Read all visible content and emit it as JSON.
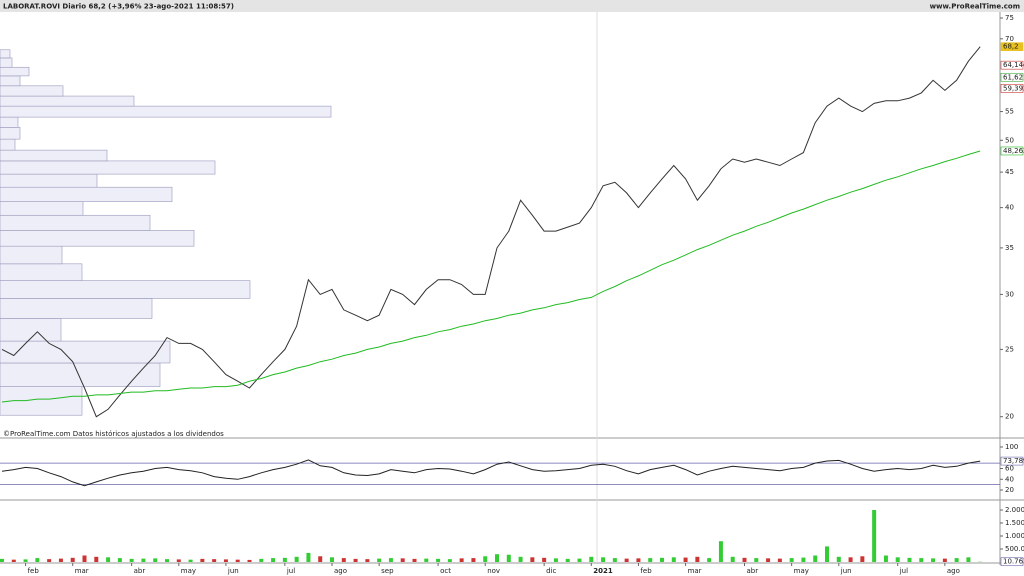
{
  "chart_data": [
    {
      "type": "line",
      "title": "LABORAT.ROVI Diario 68,2 (+3,96% 23-ago-2021 11:08:57)",
      "source": "www.ProRealTime.com",
      "note": "©ProRealTime.com  Datos históricos ajustados a los dividendos",
      "log_scale": true,
      "categories": [
        null,
        null,
        "feb",
        null,
        null,
        null,
        "mar",
        null,
        null,
        null,
        null,
        "abr",
        null,
        null,
        null,
        "may",
        null,
        null,
        null,
        "jun",
        null,
        null,
        null,
        null,
        "jul",
        null,
        null,
        null,
        "ago",
        null,
        null,
        null,
        "sep",
        null,
        null,
        null,
        null,
        "oct",
        null,
        null,
        null,
        "nov",
        null,
        null,
        null,
        null,
        "dic",
        null,
        null,
        null,
        "2021",
        null,
        null,
        null,
        "feb",
        null,
        null,
        null,
        "mar",
        null,
        null,
        null,
        null,
        "abr",
        null,
        null,
        null,
        "may",
        null,
        null,
        null,
        "jun",
        null,
        null,
        null,
        null,
        "jul",
        null,
        null,
        null,
        "ago",
        null,
        null,
        null
      ],
      "series": [
        {
          "name": "LABORAT.ROVI",
          "color": "#333333",
          "values": [
            25,
            24.5,
            25.5,
            26.5,
            25.5,
            25,
            24,
            22,
            20,
            20.5,
            21.5,
            22.5,
            23.5,
            24.5,
            26,
            25.5,
            25.5,
            25,
            24,
            23,
            22.5,
            22,
            23,
            24,
            25,
            27,
            31.5,
            30,
            30.5,
            28.5,
            28,
            27.5,
            28,
            30.5,
            30,
            29,
            30.5,
            31.5,
            31.5,
            31,
            30,
            30,
            35,
            37,
            41,
            39,
            37,
            37,
            37.5,
            38,
            40,
            43,
            43.5,
            42,
            40,
            42,
            44,
            46,
            44,
            41,
            43,
            45.5,
            47,
            46.5,
            47,
            46.5,
            46,
            47,
            48,
            53,
            56,
            57.5,
            56,
            55,
            56.5,
            57,
            57,
            57.5,
            58.5,
            61,
            59,
            61,
            65,
            68.2
          ]
        },
        {
          "name": "MA200",
          "color": "#22bb22",
          "values": [
            21.0,
            21.1,
            21.1,
            21.2,
            21.2,
            21.3,
            21.4,
            21.4,
            21.5,
            21.5,
            21.6,
            21.7,
            21.7,
            21.8,
            21.8,
            21.9,
            22.0,
            22.0,
            22.1,
            22.1,
            22.2,
            22.5,
            22.7,
            23.0,
            23.2,
            23.5,
            23.7,
            24.0,
            24.2,
            24.5,
            24.7,
            25.0,
            25.2,
            25.5,
            25.7,
            26.0,
            26.2,
            26.5,
            26.7,
            27.0,
            27.2,
            27.5,
            27.7,
            28.0,
            28.2,
            28.5,
            28.7,
            29.0,
            29.2,
            29.5,
            29.7,
            30.3,
            30.8,
            31.4,
            31.9,
            32.5,
            33.1,
            33.6,
            34.2,
            34.8,
            35.3,
            35.9,
            36.5,
            37.0,
            37.6,
            38.1,
            38.7,
            39.3,
            39.8,
            40.4,
            41.0,
            41.5,
            42.1,
            42.6,
            43.2,
            43.8,
            44.3,
            44.9,
            45.5,
            46.0,
            46.6,
            47.1,
            47.7,
            48.263
          ]
        }
      ],
      "ylim": [
        18.7,
        76
      ],
      "yticks": [
        20,
        25,
        30,
        35,
        40,
        45,
        50,
        55,
        70,
        75
      ],
      "price_labels": [
        {
          "value": 68.2,
          "label": "68,2",
          "color": "#e8c020"
        },
        {
          "value": 64.144,
          "label": "64,144",
          "color": "#cc3333"
        },
        {
          "value": 61.621,
          "label": "61,621",
          "color": "#33aa33"
        },
        {
          "value": 59.392,
          "label": "59,392",
          "color": "#cc3333"
        },
        {
          "value": 48.263,
          "label": "48,263",
          "color": "#22bb22"
        }
      ],
      "volume_profile": {
        "bins": [
          20.1,
          22.1,
          23.9,
          25.7,
          27.7,
          29.6,
          31.4,
          33.2,
          35.2,
          37.1,
          39.0,
          40.8,
          42.8,
          44.7,
          46.7,
          48.4,
          50.2,
          52.2,
          54.0,
          56.0,
          57.9,
          59.9,
          61.9,
          63.7,
          65.7,
          67.5
        ],
        "values": [
          82,
          160,
          170,
          61,
          152,
          250,
          82,
          62,
          194,
          150,
          83,
          172,
          97,
          215,
          107,
          15,
          20,
          18,
          331,
          134,
          63,
          20,
          29,
          12,
          10
        ],
        "xlim": [
          0,
          1000
        ],
        "color": "#eeeef8"
      }
    },
    {
      "type": "line",
      "series": [
        {
          "name": "RSI",
          "color": "#222222",
          "values": [
            55,
            58,
            62,
            60,
            52,
            45,
            35,
            28,
            35,
            42,
            48,
            52,
            55,
            60,
            62,
            58,
            56,
            52,
            45,
            42,
            40,
            45,
            52,
            58,
            62,
            68,
            76,
            65,
            62,
            52,
            48,
            47,
            50,
            58,
            55,
            52,
            58,
            60,
            59,
            55,
            50,
            58,
            68,
            72,
            65,
            58,
            55,
            56,
            58,
            60,
            66,
            68,
            64,
            56,
            50,
            58,
            62,
            66,
            58,
            48,
            55,
            60,
            64,
            62,
            60,
            58,
            56,
            60,
            62,
            70,
            74,
            75,
            68,
            60,
            55,
            58,
            60,
            58,
            60,
            66,
            62,
            64,
            70,
            73.789
          ]
        }
      ],
      "ylim": [
        7,
        113
      ],
      "yticks": [
        100,
        60,
        40,
        20
      ],
      "levels": [
        70,
        30
      ],
      "last_label": {
        "value": 73.789,
        "label": "73,789"
      }
    },
    {
      "type": "bar",
      "series": [
        {
          "name": "Volumen",
          "values": [
            120000,
            90000,
            100000,
            150000,
            110000,
            130000,
            160000,
            250000,
            200000,
            180000,
            150000,
            120000,
            130000,
            140000,
            110000,
            100000,
            90000,
            120000,
            110000,
            100000,
            90000,
            80000,
            120000,
            150000,
            160000,
            200000,
            350000,
            220000,
            180000,
            150000,
            120000,
            110000,
            130000,
            150000,
            140000,
            120000,
            130000,
            120000,
            110000,
            140000,
            150000,
            220000,
            300000,
            280000,
            200000,
            180000,
            160000,
            140000,
            120000,
            130000,
            200000,
            180000,
            150000,
            130000,
            140000,
            150000,
            160000,
            180000,
            170000,
            200000,
            150000,
            800000,
            200000,
            160000,
            150000,
            140000,
            130000,
            150000,
            170000,
            250000,
            600000,
            200000,
            180000,
            220000,
            2000000,
            250000,
            180000,
            160000,
            150000,
            140000,
            130000,
            150000,
            180000,
            10767
          ]
        }
      ],
      "up_color": "#33cc33",
      "down_color": "#cc3333",
      "ylim": [
        0,
        2270000
      ],
      "yticks": [
        {
          "value": 2000000,
          "label": "2.000k"
        },
        {
          "value": 1500000,
          "label": "1.500k"
        },
        {
          "value": 1000000,
          "label": "1.000k"
        },
        {
          "value": 500000,
          "label": "500.000"
        }
      ],
      "last_label": {
        "value": 10767,
        "label": "10.767"
      }
    }
  ]
}
